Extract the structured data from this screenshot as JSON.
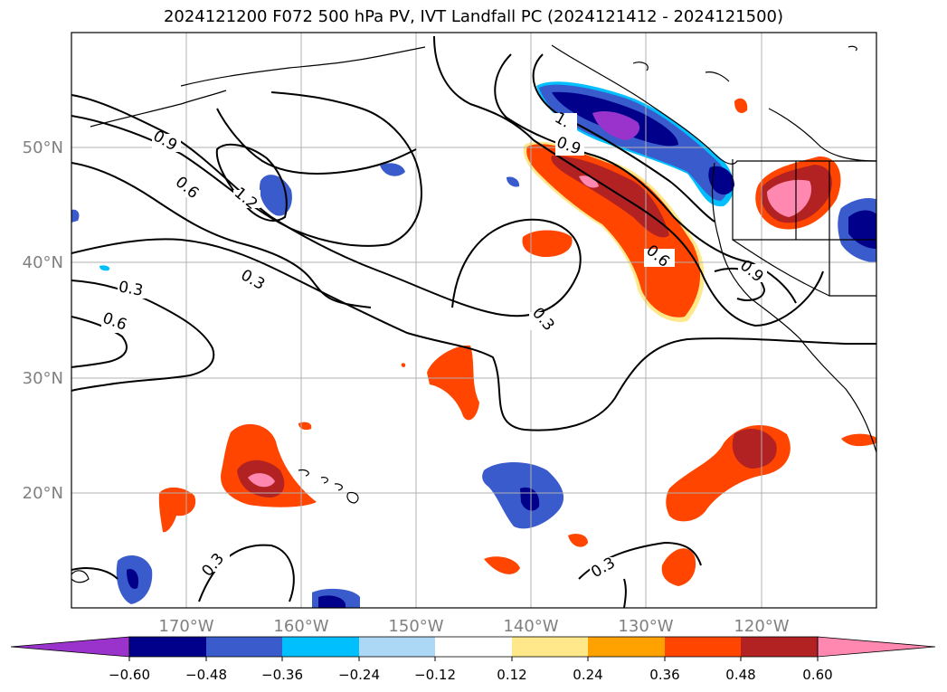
{
  "title": "2024121200 F072 500 hPa PV, IVT Landfall PC (2024121412 - 2024121500)",
  "colors": {
    "purple": "#9933cc",
    "navy": "#00008b",
    "royal": "#3a5bcc",
    "sky": "#00bfff",
    "pale_blue": "#add8f5",
    "white": "#ffffff",
    "pale_yellow": "#ffe88a",
    "orange": "#ffa200",
    "red_orange": "#ff4500",
    "firebrick": "#b22222",
    "pink": "#ff88b0",
    "grid": "#b0b0b0",
    "tick_label": "#808080"
  },
  "lon_labels": [
    "170°W",
    "160°W",
    "150°W",
    "140°W",
    "130°W",
    "120°W"
  ],
  "lat_labels": [
    "50°N",
    "40°N",
    "30°N",
    "20°N"
  ],
  "contour_labels": [
    "0.9",
    "0.6",
    "1.2",
    "0.3",
    "0.3",
    "0.6",
    "1.",
    "0.9",
    "0.6",
    "0.9",
    "0.3",
    "0.3",
    "0.3"
  ],
  "colorbar": {
    "ticks": [
      "−0.60",
      "−0.48",
      "−0.36",
      "−0.24",
      "−0.12",
      "0.12",
      "0.24",
      "0.36",
      "0.48",
      "0.60"
    ],
    "bins": [
      "#9933cc",
      "#00008b",
      "#3a5bcc",
      "#00bfff",
      "#add8f5",
      "#ffffff",
      "#ffe88a",
      "#ffa200",
      "#ff4500",
      "#b22222",
      "#ff88b0"
    ]
  }
}
